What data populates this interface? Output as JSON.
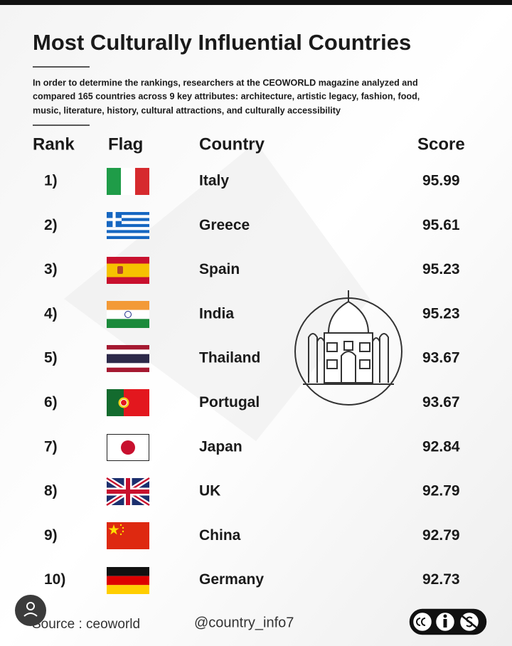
{
  "header": {
    "title": "Most Culturally Influential Countries",
    "description": [
      "In order to determine the rankings, researchers at the CEOWORLD magazine analyzed and",
      "compared 165 countries across 9 key attributes: architecture, artistic legacy, fashion, food,",
      "music, literature, history, cultural attractions, and culturally accessibility"
    ]
  },
  "table": {
    "columns": [
      "Rank",
      "Flag",
      "Country",
      "Score"
    ],
    "rows": [
      [
        "1)",
        "Italy",
        "95.99"
      ],
      [
        "2)",
        "Greece",
        "95.61"
      ],
      [
        "3)",
        "Spain",
        "95.23"
      ],
      [
        "4)",
        "India",
        "95.23"
      ],
      [
        "5)",
        "Thailand",
        "93.67"
      ],
      [
        "6)",
        "Portugal",
        "93.67"
      ],
      [
        "7)",
        "Japan",
        "92.84"
      ],
      [
        "8)",
        "UK",
        "92.79"
      ],
      [
        "9)",
        "China",
        "92.79"
      ],
      [
        "10)",
        "Germany",
        "92.73"
      ]
    ]
  },
  "footer": {
    "source": "Source : ceoworld",
    "handle": "@country_info7"
  }
}
